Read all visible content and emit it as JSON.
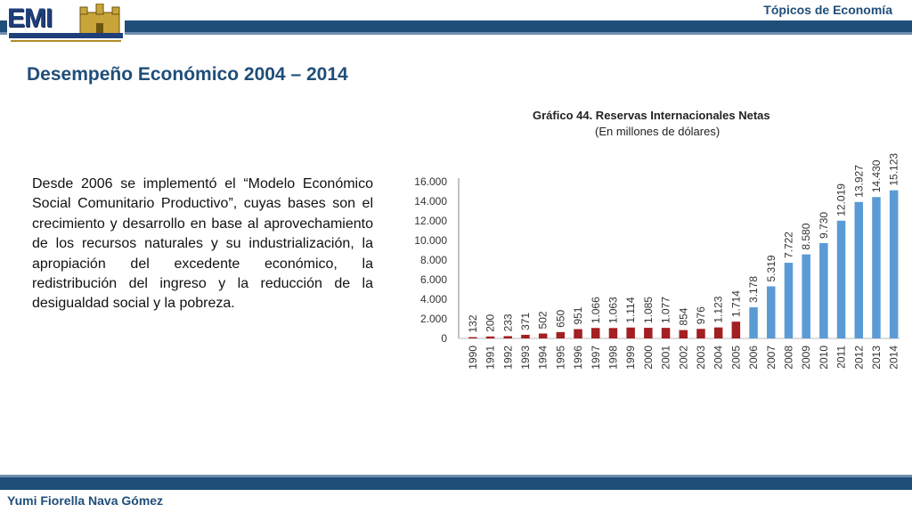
{
  "header": {
    "logo_text": "EMI",
    "topic": "Tópicos de Economía",
    "colors": {
      "bar": "#1f4e79",
      "accent": "#6f8fb0"
    }
  },
  "page_title": "Desempeño Económico 2004 – 2014",
  "body_text": "Desde 2006 se implementó el “Modelo Económico Social Comunitario Productivo”, cuyas bases son el crecimiento y desarrollo en base al aprovechamiento de los recursos naturales y su industrialización, la apropiación del excedente económico, la redistribución del ingreso y la reducción de la desigualdad social y la pobreza.",
  "footer": {
    "author": "Yumi Fiorella Nava Gómez"
  },
  "chart_data": {
    "type": "bar",
    "title": "Gráfico 44. Reservas Internacionales Netas",
    "subtitle": "(En millones de dólares)",
    "categories": [
      "1990",
      "1991",
      "1992",
      "1993",
      "1994",
      "1995",
      "1996",
      "1997",
      "1998",
      "1999",
      "2000",
      "2001",
      "2002",
      "2003",
      "2004",
      "2005",
      "2006",
      "2007",
      "2008",
      "2009",
      "2010",
      "2011",
      "2012",
      "2013",
      "2014"
    ],
    "values": [
      132,
      200,
      233,
      371,
      502,
      650,
      951,
      1066,
      1063,
      1114,
      1085,
      1077,
      854,
      976,
      1123,
      1714,
      3178,
      5319,
      7722,
      8580,
      9730,
      12019,
      13927,
      14430,
      15123
    ],
    "value_labels": [
      "132",
      "200",
      "233",
      "371",
      "502",
      "650",
      "951",
      "1.066",
      "1.063",
      "1.114",
      "1.085",
      "1.077",
      "854",
      "976",
      "1.123",
      "1.714",
      "3.178",
      "5.319",
      "7.722",
      "8.580",
      "9.730",
      "12.019",
      "13.927",
      "14.430",
      "15.123"
    ],
    "yticks": [
      "0",
      "2.000",
      "4.000",
      "6.000",
      "8.000",
      "10.000",
      "12.000",
      "14.000",
      "16.000"
    ],
    "ytick_values": [
      0,
      2000,
      4000,
      6000,
      8000,
      10000,
      12000,
      14000,
      16000
    ],
    "ylim": [
      0,
      16000
    ],
    "colors": {
      "before_2006": "#a31f22",
      "from_2006": "#5b9bd5"
    },
    "grid": false
  }
}
